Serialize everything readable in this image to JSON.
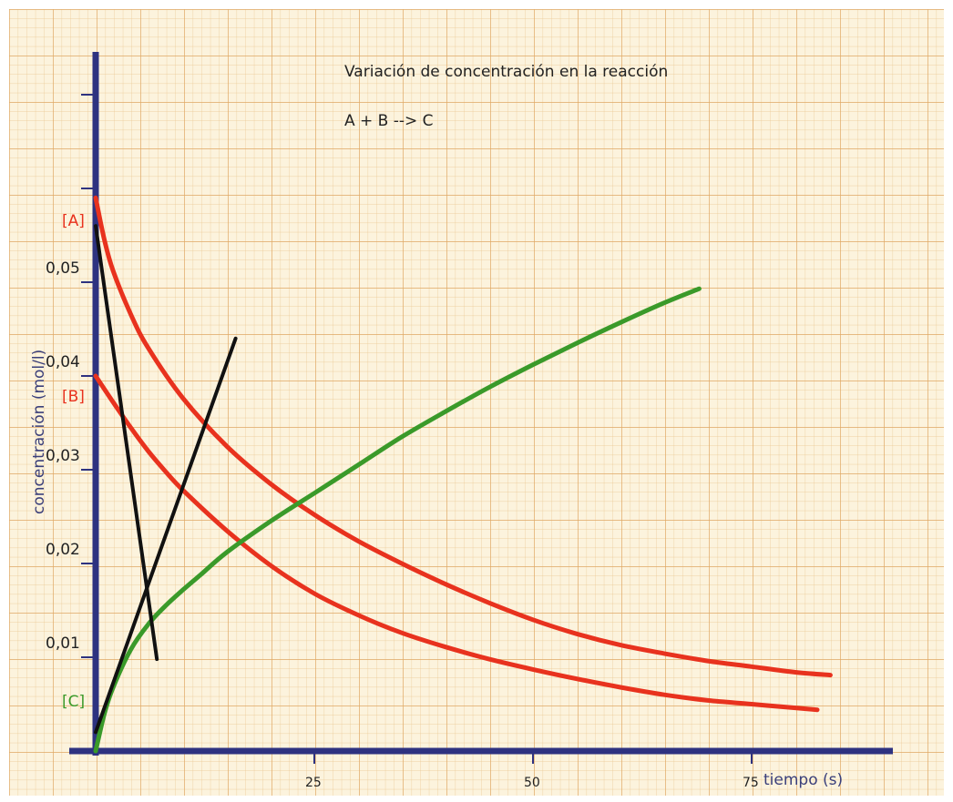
{
  "chart_data": {
    "type": "line",
    "title": "Variación de concentración en la reacción",
    "subtitle": "A + B --> C",
    "xlabel": "tiempo (s)",
    "ylabel": "concentración  (mol/l)",
    "xlim": [
      0,
      90
    ],
    "ylim": [
      0,
      0.075
    ],
    "xticks": [
      {
        "value": 25,
        "label": "25"
      },
      {
        "value": 50,
        "label": "50"
      },
      {
        "value": 75,
        "label": "75"
      }
    ],
    "yticks": [
      {
        "value": 0.01,
        "label": "0,01"
      },
      {
        "value": 0.02,
        "label": "0,02"
      },
      {
        "value": 0.03,
        "label": "0,03"
      },
      {
        "value": 0.04,
        "label": "0,04"
      },
      {
        "value": 0.05,
        "label": "0,05"
      }
    ],
    "grid": true,
    "series": [
      {
        "name": "[A]",
        "color": "#e8321e",
        "x": [
          0,
          1,
          2,
          4,
          6,
          10,
          15,
          20,
          25,
          30,
          35,
          40,
          45,
          50,
          55,
          60,
          65,
          70,
          75,
          80,
          84
        ],
        "y": [
          0.059,
          0.0545,
          0.0512,
          0.0466,
          0.043,
          0.0376,
          0.0325,
          0.0285,
          0.0252,
          0.0224,
          0.02,
          0.0178,
          0.0158,
          0.014,
          0.0125,
          0.0113,
          0.0104,
          0.0096,
          0.009,
          0.0084,
          0.0081
        ]
      },
      {
        "name": "[B]",
        "color": "#e8321e",
        "x": [
          0,
          2,
          4,
          6,
          8,
          10,
          15,
          20,
          25,
          30,
          35,
          40,
          45,
          50,
          55,
          60,
          65,
          70,
          75,
          80,
          82.5
        ],
        "y": [
          0.04,
          0.0372,
          0.0345,
          0.032,
          0.0298,
          0.0278,
          0.0235,
          0.0198,
          0.0168,
          0.0145,
          0.0126,
          0.0111,
          0.0098,
          0.0087,
          0.0077,
          0.0068,
          0.006,
          0.0054,
          0.005,
          0.0046,
          0.0044
        ]
      },
      {
        "name": "[C]",
        "color": "#3a9a2a",
        "x": [
          0,
          1,
          2,
          4,
          6,
          8,
          10,
          12,
          15,
          20,
          25,
          30,
          35,
          40,
          45,
          50,
          55,
          60,
          65,
          69
        ],
        "y": [
          0.0,
          0.004,
          0.0068,
          0.0108,
          0.0135,
          0.0155,
          0.0172,
          0.0188,
          0.0212,
          0.0245,
          0.0275,
          0.0305,
          0.0335,
          0.0362,
          0.0388,
          0.0412,
          0.0435,
          0.0457,
          0.0478,
          0.0493
        ]
      }
    ],
    "annotations": [
      {
        "type": "tangent",
        "color": "#111111",
        "x": [
          0,
          7
        ],
        "y": [
          0.056,
          0.0098
        ]
      },
      {
        "type": "tangent",
        "color": "#111111",
        "x": [
          0,
          16
        ],
        "y": [
          0.002,
          0.044
        ]
      }
    ]
  }
}
